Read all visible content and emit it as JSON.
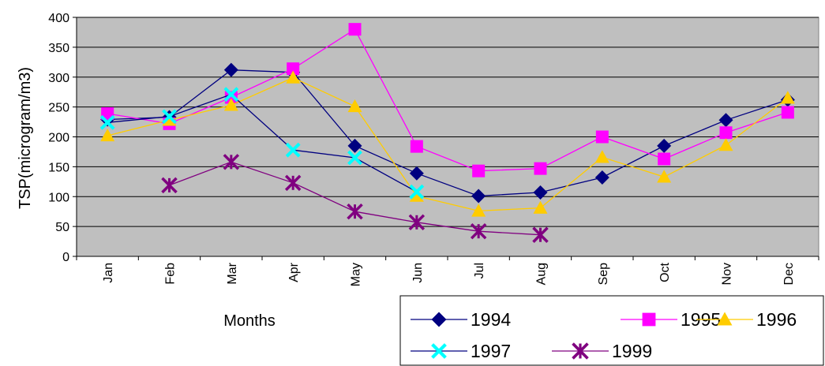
{
  "chart_data": {
    "type": "line",
    "title": "",
    "xlabel": "Months",
    "ylabel": "TSP(microgram/m3)",
    "ylim": [
      0,
      400
    ],
    "yticks": [
      "0",
      "50",
      "100",
      "150",
      "200",
      "250",
      "300",
      "350",
      "400"
    ],
    "categories": [
      "Jan",
      "Feb",
      "Mar",
      "Apr",
      "May",
      "Jun",
      "Jul",
      "Aug",
      "Sep",
      "Oct",
      "Nov",
      "Dec"
    ],
    "plot_area_fill": "#bfbfbf",
    "grid": true,
    "legend_position": "bottom-right",
    "series": [
      {
        "name": "1994",
        "color": "#000080",
        "marker": "diamond",
        "values": [
          229,
          233,
          312,
          308,
          185,
          139,
          101,
          107,
          132,
          185,
          228,
          262
        ]
      },
      {
        "name": "1995",
        "color": "#ff00ff",
        "marker": "square",
        "values": [
          239,
          222,
          266,
          314,
          380,
          184,
          143,
          147,
          200,
          163,
          207,
          241
        ]
      },
      {
        "name": "1996",
        "color": "#ffcc00",
        "marker": "triangle",
        "values": [
          202,
          228,
          253,
          299,
          251,
          101,
          76,
          81,
          166,
          133,
          186,
          265
        ]
      },
      {
        "name": "1997",
        "color": "#00ffff",
        "line_color": "#000080",
        "marker": "x",
        "values": [
          224,
          234,
          271,
          178,
          165,
          108,
          null,
          null,
          null,
          null,
          null,
          null
        ]
      },
      {
        "name": "1999",
        "color": "#800080",
        "marker": "asterisk",
        "values": [
          null,
          119,
          158,
          123,
          75,
          57,
          42,
          36,
          null,
          null,
          null,
          null
        ]
      }
    ]
  }
}
